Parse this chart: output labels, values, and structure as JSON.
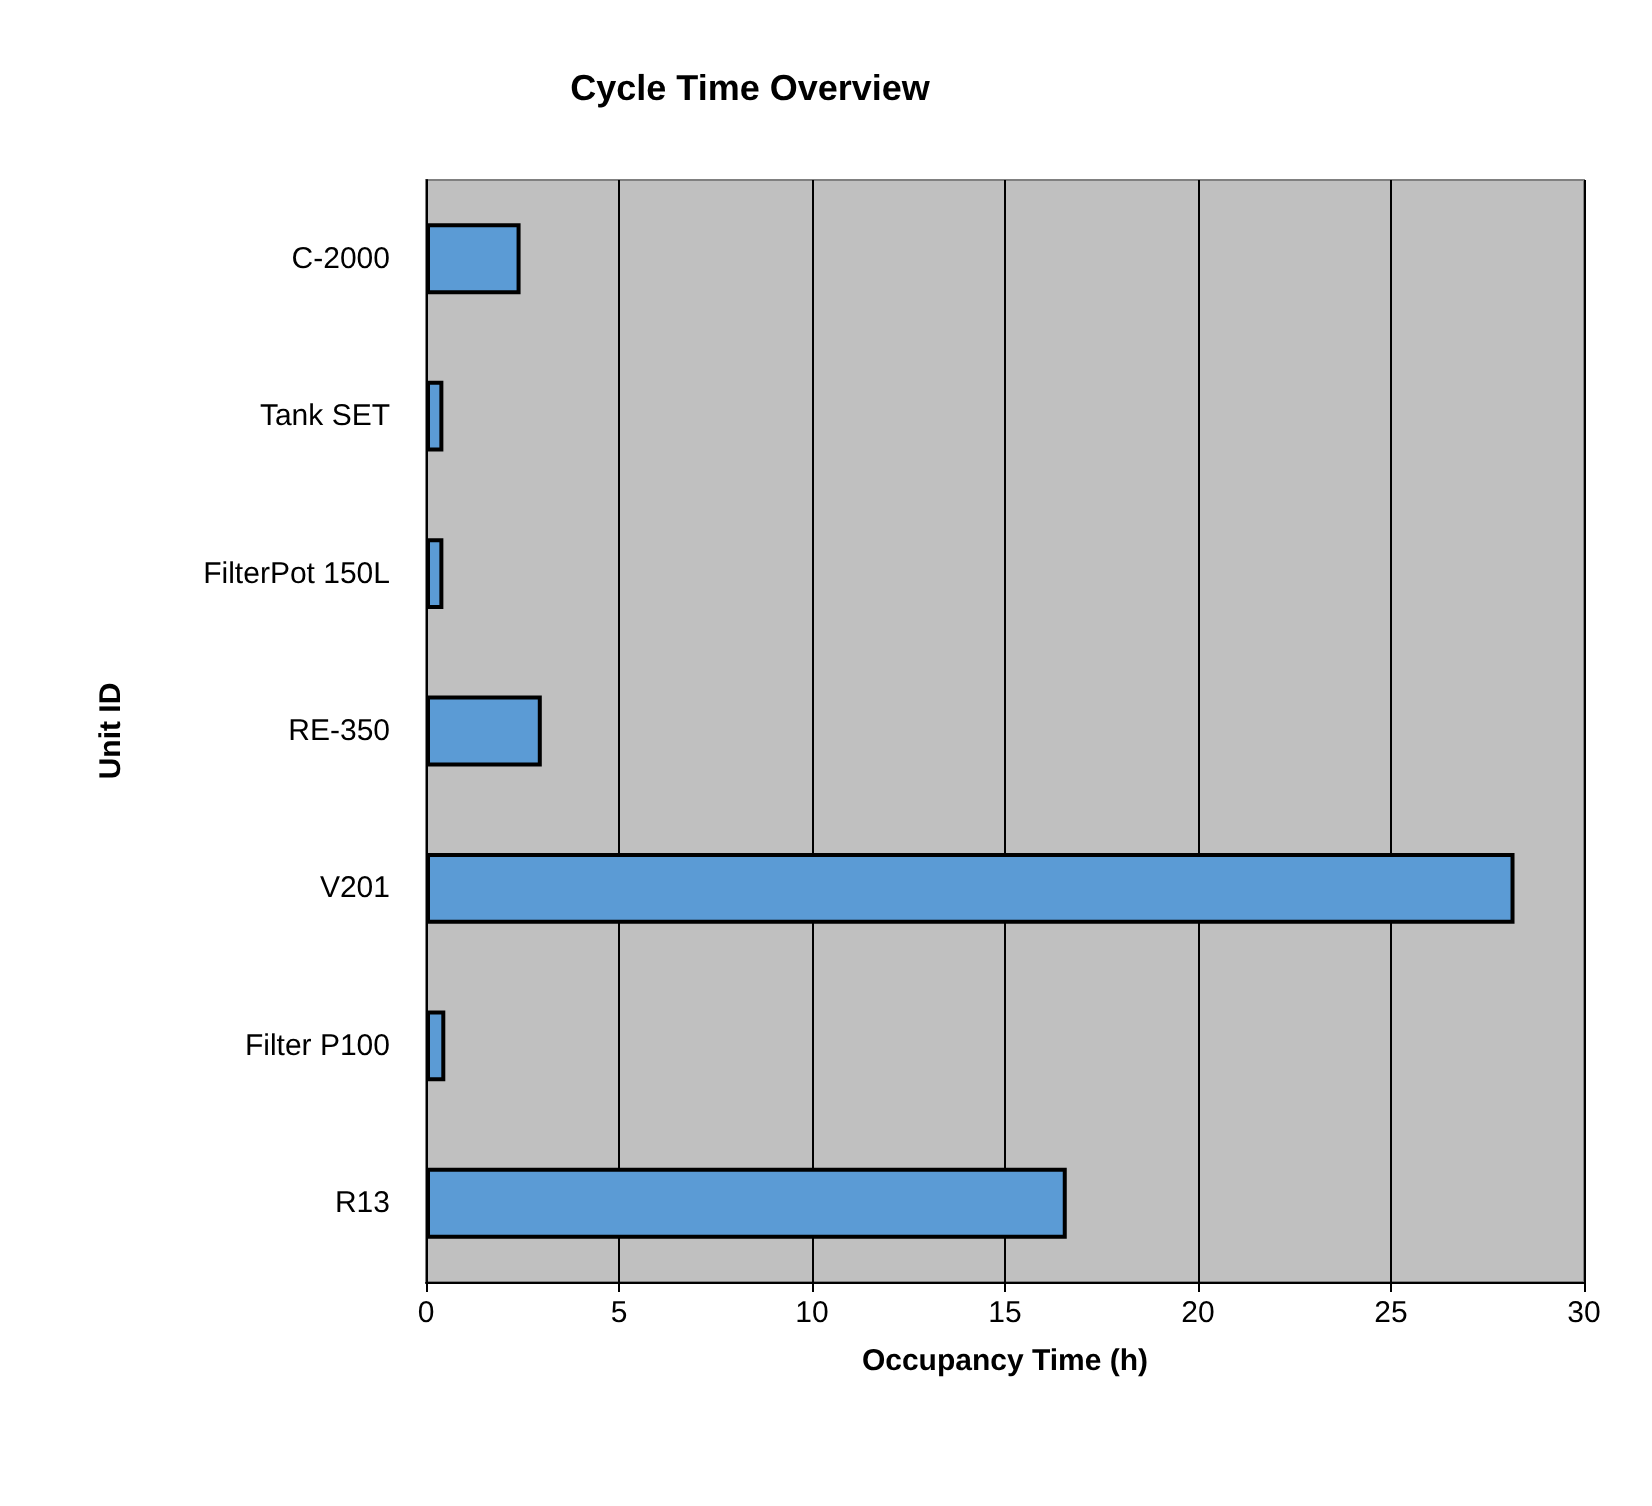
{
  "chart_data": {
    "type": "bar",
    "orientation": "horizontal",
    "title": "Cycle Time Overview",
    "xlabel": "Occupancy Time (h)",
    "ylabel": "Unit ID",
    "categories": [
      "C-2000",
      "Tank SET",
      "FilterPot 150L",
      "RE-350",
      "V201",
      "Filter P100",
      "R13"
    ],
    "values": [
      2.45,
      0.45,
      0.45,
      3.0,
      28.2,
      0.5,
      16.6
    ],
    "color": "#5b9bd5",
    "xlim": [
      0,
      30
    ],
    "xticks": [
      0,
      5,
      10,
      15,
      20,
      25,
      30
    ],
    "grid": "x"
  }
}
